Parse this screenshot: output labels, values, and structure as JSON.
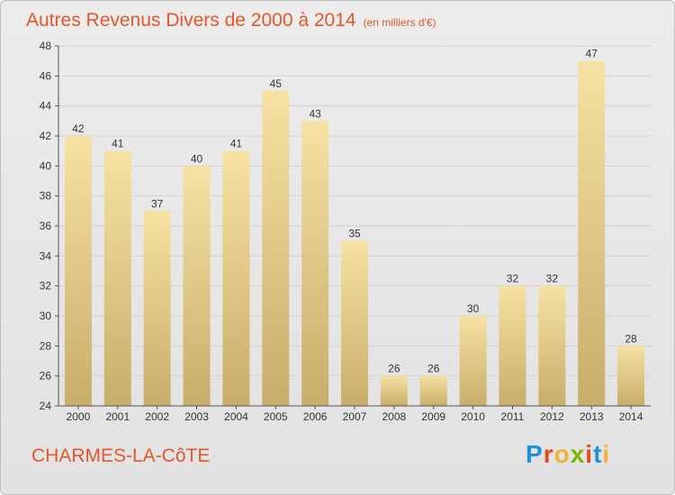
{
  "title": "Autres Revenus Divers de 2000 à 2014",
  "unit_note": "(en milliers d'€)",
  "city": "CHARMES-LA-CôTE",
  "logo": {
    "letters": [
      "P",
      "r",
      "o",
      "x",
      "i",
      "t",
      "i"
    ],
    "colors": [
      "#1f8fd6",
      "#e44a1f",
      "#f2b233",
      "#7ab800",
      "#e44a1f",
      "#1f8fd6",
      "#f2b233"
    ]
  },
  "colors": {
    "bar_light": "#f6e2a3",
    "bar_dark": "#c9ad6a",
    "title": "#e3572a"
  },
  "chart_data": {
    "type": "bar",
    "categories": [
      "2000",
      "2001",
      "2002",
      "2003",
      "2004",
      "2005",
      "2006",
      "2007",
      "2008",
      "2009",
      "2010",
      "2011",
      "2012",
      "2013",
      "2014"
    ],
    "values": [
      42,
      41,
      37,
      40,
      41,
      45,
      43,
      35,
      26,
      26,
      30,
      32,
      32,
      47,
      28
    ],
    "ylim": [
      24,
      48
    ],
    "yticks": [
      24,
      26,
      28,
      30,
      32,
      34,
      36,
      38,
      40,
      42,
      44,
      46,
      48
    ],
    "grid": true,
    "legend": "none"
  }
}
